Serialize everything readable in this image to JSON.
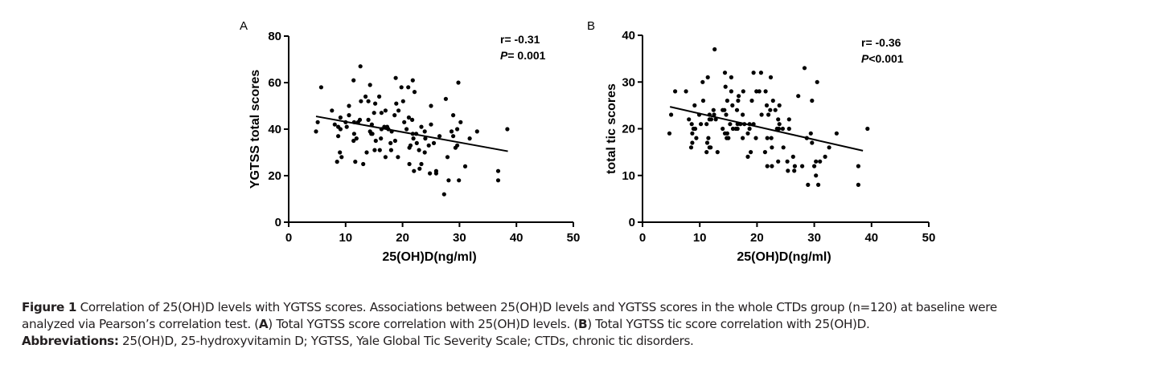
{
  "chart_data": [
    {
      "type": "scatter",
      "panel_label": "A",
      "title": "",
      "xlabel": "25(OH)D(ng/ml)",
      "ylabel": "YGTSS total scores",
      "xlim": [
        0,
        50
      ],
      "ylim": [
        0,
        80
      ],
      "xticks": [
        0,
        10,
        20,
        30,
        40,
        50
      ],
      "yticks": [
        0,
        20,
        40,
        60,
        80
      ],
      "grid": false,
      "annotations": {
        "r": "r= -0.31",
        "p_label": "P",
        "p_value": "= 0.001",
        "placement": "top-right"
      },
      "regression_line": {
        "x": [
          4.8,
          38.5
        ],
        "y": [
          45.5,
          30.5
        ]
      },
      "points": [
        [
          4.8,
          39
        ],
        [
          5.1,
          43
        ],
        [
          5.7,
          58
        ],
        [
          7.6,
          48
        ],
        [
          8.1,
          42
        ],
        [
          8.5,
          26
        ],
        [
          8.7,
          37
        ],
        [
          8.7,
          41
        ],
        [
          9.0,
          30
        ],
        [
          9.1,
          45
        ],
        [
          9.3,
          28
        ],
        [
          9.1,
          40
        ],
        [
          10.2,
          41
        ],
        [
          10.6,
          50
        ],
        [
          10.6,
          46
        ],
        [
          11.4,
          61
        ],
        [
          11.4,
          35
        ],
        [
          11.5,
          43
        ],
        [
          11.5,
          38
        ],
        [
          11.7,
          26
        ],
        [
          11.9,
          36
        ],
        [
          12.6,
          67
        ],
        [
          12.7,
          52
        ],
        [
          12.5,
          44
        ],
        [
          13.1,
          25
        ],
        [
          13.5,
          54
        ],
        [
          13.7,
          30
        ],
        [
          14.0,
          52
        ],
        [
          14.3,
          59
        ],
        [
          14.0,
          44
        ],
        [
          14.3,
          39
        ],
        [
          14.5,
          38
        ],
        [
          14.7,
          38
        ],
        [
          15.0,
          47
        ],
        [
          15.2,
          51
        ],
        [
          15.3,
          35
        ],
        [
          15.1,
          31
        ],
        [
          15.9,
          54
        ],
        [
          16.0,
          31
        ],
        [
          16.2,
          36
        ],
        [
          16.3,
          40
        ],
        [
          16.3,
          47
        ],
        [
          17.0,
          48
        ],
        [
          17.0,
          28
        ],
        [
          17.3,
          41
        ],
        [
          17.9,
          34
        ],
        [
          18.1,
          39
        ],
        [
          18.6,
          46
        ],
        [
          18.8,
          62
        ],
        [
          18.9,
          51
        ],
        [
          18.7,
          35
        ],
        [
          19.3,
          48
        ],
        [
          19.2,
          28
        ],
        [
          19.8,
          58
        ],
        [
          20.1,
          52
        ],
        [
          20.3,
          43
        ],
        [
          21.0,
          58
        ],
        [
          21.2,
          25
        ],
        [
          21.1,
          45
        ],
        [
          21.2,
          32
        ],
        [
          21.4,
          33
        ],
        [
          21.8,
          61
        ],
        [
          21.7,
          44
        ],
        [
          21.8,
          38
        ],
        [
          21.9,
          36
        ],
        [
          22.1,
          56
        ],
        [
          22.0,
          22
        ],
        [
          22.5,
          34
        ],
        [
          22.9,
          31
        ],
        [
          23.0,
          23
        ],
        [
          23.3,
          41
        ],
        [
          23.3,
          25
        ],
        [
          23.9,
          39
        ],
        [
          24.0,
          36
        ],
        [
          23.9,
          30
        ],
        [
          24.6,
          33
        ],
        [
          25.0,
          50
        ],
        [
          25.0,
          42
        ],
        [
          24.8,
          21
        ],
        [
          25.5,
          34
        ],
        [
          25.9,
          22
        ],
        [
          25.9,
          21
        ],
        [
          26.5,
          37
        ],
        [
          27.3,
          12
        ],
        [
          27.6,
          53
        ],
        [
          27.9,
          28
        ],
        [
          28.1,
          18
        ],
        [
          28.6,
          39
        ],
        [
          28.9,
          37
        ],
        [
          28.9,
          46
        ],
        [
          29.3,
          32
        ],
        [
          29.6,
          40
        ],
        [
          29.6,
          33
        ],
        [
          29.8,
          60
        ],
        [
          29.9,
          18
        ],
        [
          30.2,
          43
        ],
        [
          31.0,
          24
        ],
        [
          31.8,
          36
        ],
        [
          33.1,
          39
        ],
        [
          36.8,
          22
        ],
        [
          36.8,
          18
        ],
        [
          38.4,
          40
        ],
        [
          16.8,
          41
        ],
        [
          12.2,
          43
        ],
        [
          14.6,
          42
        ],
        [
          20.7,
          40
        ],
        [
          22.4,
          38
        ],
        [
          18.0,
          31
        ],
        [
          10.0,
          43
        ],
        [
          17.5,
          40
        ]
      ]
    },
    {
      "type": "scatter",
      "panel_label": "B",
      "title": "",
      "xlabel": "25(OH)D(ng/ml)",
      "ylabel": "total tic scores",
      "xlim": [
        0,
        50
      ],
      "ylim": [
        0,
        40
      ],
      "xticks": [
        0,
        10,
        20,
        30,
        40,
        50
      ],
      "yticks": [
        0,
        10,
        20,
        30,
        40
      ],
      "grid": false,
      "annotations": {
        "r": "r= -0.36",
        "p_label": "P",
        "p_value": "<0.001",
        "placement": "top-right"
      },
      "regression_line": {
        "x": [
          4.8,
          38.5
        ],
        "y": [
          24.7,
          15.3
        ]
      },
      "points": [
        [
          4.7,
          19
        ],
        [
          5.0,
          23
        ],
        [
          5.7,
          28
        ],
        [
          7.6,
          28
        ],
        [
          8.1,
          22
        ],
        [
          8.5,
          16
        ],
        [
          8.6,
          21
        ],
        [
          8.7,
          19
        ],
        [
          8.7,
          17
        ],
        [
          8.9,
          20
        ],
        [
          9.1,
          25
        ],
        [
          9.2,
          20
        ],
        [
          9.4,
          18
        ],
        [
          9.9,
          23
        ],
        [
          10.2,
          21
        ],
        [
          10.5,
          30
        ],
        [
          10.6,
          26
        ],
        [
          11.2,
          21
        ],
        [
          11.4,
          31
        ],
        [
          11.3,
          17
        ],
        [
          11.5,
          18
        ],
        [
          11.7,
          22
        ],
        [
          11.7,
          16
        ],
        [
          11.9,
          16
        ],
        [
          11.7,
          23
        ],
        [
          12.4,
          24
        ],
        [
          12.6,
          37
        ],
        [
          12.5,
          23
        ],
        [
          12.8,
          22
        ],
        [
          14.0,
          24
        ],
        [
          14.0,
          20
        ],
        [
          14.3,
          24
        ],
        [
          14.4,
          32
        ],
        [
          14.5,
          29
        ],
        [
          14.4,
          19
        ],
        [
          14.6,
          23
        ],
        [
          14.8,
          19
        ],
        [
          14.8,
          26
        ],
        [
          14.7,
          18
        ],
        [
          15.0,
          18
        ],
        [
          15.3,
          21
        ],
        [
          15.5,
          31
        ],
        [
          15.5,
          28
        ],
        [
          15.7,
          25
        ],
        [
          16.3,
          20
        ],
        [
          16.5,
          24
        ],
        [
          16.6,
          21
        ],
        [
          16.7,
          26
        ],
        [
          16.8,
          27
        ],
        [
          16.6,
          20
        ],
        [
          17.5,
          18
        ],
        [
          17.6,
          28
        ],
        [
          17.5,
          23
        ],
        [
          17.8,
          21
        ],
        [
          18.4,
          19
        ],
        [
          18.4,
          14
        ],
        [
          18.7,
          21
        ],
        [
          18.7,
          20
        ],
        [
          19.1,
          26
        ],
        [
          19.4,
          21
        ],
        [
          19.4,
          32
        ],
        [
          19.8,
          18
        ],
        [
          19.9,
          28
        ],
        [
          20.4,
          28
        ],
        [
          20.7,
          32
        ],
        [
          20.8,
          23
        ],
        [
          21.5,
          28
        ],
        [
          21.7,
          25
        ],
        [
          21.8,
          18
        ],
        [
          21.8,
          12
        ],
        [
          22.0,
          23
        ],
        [
          22.3,
          24
        ],
        [
          22.4,
          31
        ],
        [
          22.5,
          18
        ],
        [
          22.6,
          16
        ],
        [
          22.6,
          12
        ],
        [
          22.8,
          26
        ],
        [
          23.2,
          24
        ],
        [
          23.7,
          13
        ],
        [
          23.7,
          22
        ],
        [
          23.9,
          21
        ],
        [
          23.9,
          25
        ],
        [
          23.8,
          20
        ],
        [
          24.5,
          20
        ],
        [
          24.6,
          16
        ],
        [
          25.3,
          13
        ],
        [
          25.4,
          11
        ],
        [
          25.6,
          22
        ],
        [
          25.6,
          20
        ],
        [
          26.3,
          14
        ],
        [
          26.5,
          11
        ],
        [
          26.6,
          12
        ],
        [
          27.2,
          27
        ],
        [
          27.9,
          12
        ],
        [
          28.3,
          33
        ],
        [
          28.7,
          18
        ],
        [
          28.9,
          8
        ],
        [
          29.4,
          19
        ],
        [
          29.6,
          26
        ],
        [
          29.6,
          17
        ],
        [
          30.0,
          12
        ],
        [
          30.3,
          13
        ],
        [
          30.3,
          10
        ],
        [
          30.5,
          30
        ],
        [
          30.7,
          8
        ],
        [
          31.0,
          13
        ],
        [
          31.9,
          14
        ],
        [
          32.6,
          16
        ],
        [
          33.9,
          19
        ],
        [
          37.7,
          12
        ],
        [
          37.7,
          8
        ],
        [
          39.3,
          20
        ],
        [
          11.2,
          15
        ],
        [
          13.1,
          15
        ],
        [
          18.9,
          15
        ],
        [
          21.4,
          15
        ],
        [
          12.0,
          22
        ],
        [
          17.1,
          21
        ],
        [
          23.5,
          20
        ],
        [
          15.8,
          20
        ]
      ]
    }
  ],
  "caption": {
    "figure_label": "Figure 1",
    "line1_text": " Correlation of 25(OH)D levels with YGTSS scores. Associations between 25(OH)D levels and YGTSS scores in the whole CTDs group (n=120) at baseline were",
    "line2_text_a": "analyzed via Pearson’s correlation test. (",
    "line2_bold_a": "A",
    "line2_text_b": ") Total YGTSS score correlation with 25(OH)D levels. (",
    "line2_bold_b": "B",
    "line2_text_c": ") Total YGTSS tic score correlation with 25(OH)D.",
    "abbrev_label": "Abbreviations:",
    "abbrev_text": " 25(OH)D, 25-hydroxyvitamin D; YGTSS, Yale Global Tic Severity Scale; CTDs, chronic tic disorders."
  }
}
